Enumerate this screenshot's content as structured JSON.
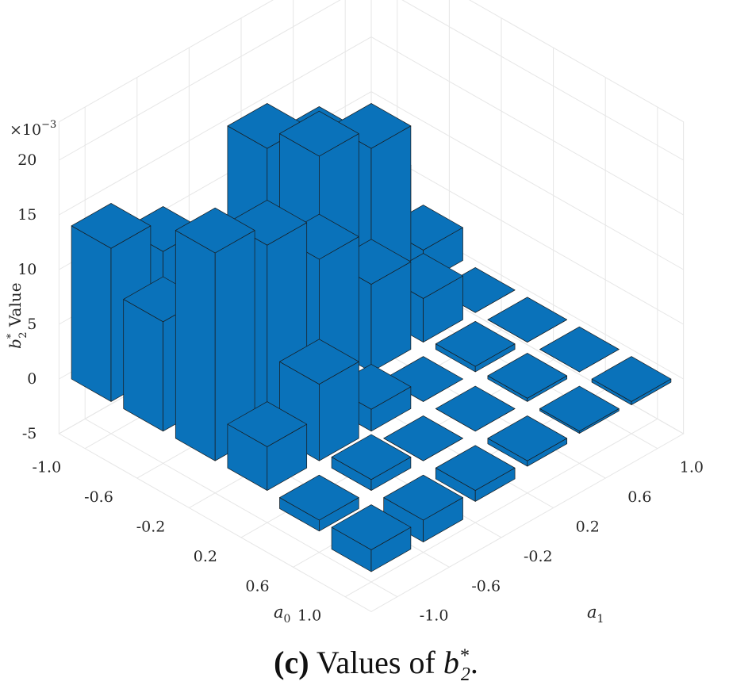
{
  "chart_data": {
    "type": "bar3d",
    "title": "",
    "xlabel": "a",
    "xlabel_sub": "0",
    "ylabel": "a",
    "ylabel_sub": "1",
    "zlabel_main": "b",
    "zlabel_sup": "*",
    "zlabel_sub": "2",
    "zlabel_suffix": " Value",
    "zlim": [
      -5,
      20
    ],
    "zscale": 0.001,
    "zscale_label": "×10",
    "zscale_exp": "−3",
    "z_ticks": [
      "20",
      "15",
      "10",
      "5",
      "0",
      "-5"
    ],
    "a0_ticks": [
      "-1.0",
      "-0.6",
      "-0.2",
      "0.2",
      "0.6",
      "1.0"
    ],
    "a1_ticks": [
      "-1.0",
      "-0.6",
      "-0.2",
      "0.2",
      "0.6",
      "1.0"
    ],
    "grid": true,
    "bar_color": "#0A72BA",
    "a0_values": [
      -1.0,
      -0.6,
      -0.2,
      0.2,
      0.6,
      1.0
    ],
    "a1_values": [
      -1.0,
      -0.6,
      -0.2,
      0.2,
      0.6,
      1.0
    ],
    "values": [
      [
        14,
        11,
        5,
        15,
        12,
        6
      ],
      [
        10,
        12,
        11,
        17,
        15,
        3
      ],
      [
        19,
        17,
        13,
        8,
        4,
        0
      ],
      [
        4,
        7,
        2,
        0,
        0.5,
        0
      ],
      [
        -1,
        1,
        0,
        0,
        0.3,
        0
      ],
      [
        -2,
        -2,
        -1,
        -0.5,
        -0.2,
        -0.3
      ]
    ]
  },
  "caption": {
    "label": "(c)",
    "text": "Values of",
    "symbol": "b",
    "sub": "2",
    "sup": "*",
    "end": "."
  }
}
